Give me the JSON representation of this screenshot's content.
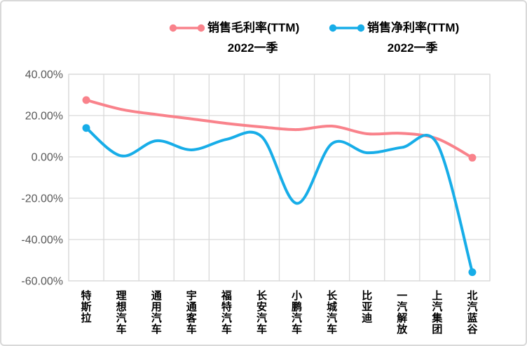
{
  "frame": {
    "background": "#ffffff",
    "border_color": "#d9d9d9"
  },
  "legend": {
    "position": "top",
    "items": [
      {
        "label": "销售毛利率(TTM)",
        "sublabel": "2022一季",
        "color": "#f9828b",
        "marker": "line-with-end-dots"
      },
      {
        "label": "销售净利率(TTM)",
        "sublabel": "2022一季",
        "color": "#17ade8",
        "marker": "line-with-end-dots"
      }
    ]
  },
  "chart_data": {
    "type": "line",
    "title": "",
    "xlabel": "",
    "ylabel": "",
    "categories": [
      "特斯拉",
      "理想汽车",
      "通用汽车",
      "宇通客车",
      "福特汽车",
      "长安汽车",
      "小鹏汽车",
      "长城汽车",
      "比亚迪",
      "一汽解放",
      "上汽集团",
      "北汽蓝谷"
    ],
    "series": [
      {
        "name": "销售毛利率(TTM) 2022一季",
        "color": "#f9828b",
        "values": [
          27.5,
          23.0,
          20.5,
          18.4,
          16.2,
          14.5,
          13.2,
          14.9,
          11.2,
          11.4,
          8.8,
          -0.4
        ]
      },
      {
        "name": "销售净利率(TTM) 2022一季",
        "color": "#17ade8",
        "values": [
          14.0,
          0.5,
          7.8,
          3.4,
          8.5,
          9.8,
          -22.5,
          6.4,
          2.0,
          4.6,
          6.3,
          -55.8
        ]
      }
    ],
    "ylim": [
      -60,
      40
    ],
    "ytick_step": 20,
    "ytick_labels": [
      "40.00%",
      "20.00%",
      "0.00%",
      "-20.00%",
      "-40.00%",
      "-60.00%"
    ],
    "grid": true,
    "grid_color": "#d9d9d9",
    "axis_label_color": "#595959",
    "category_label_color": "#000000",
    "line_style": "smooth",
    "markers": "endpoints-only",
    "legend_position": "top"
  }
}
